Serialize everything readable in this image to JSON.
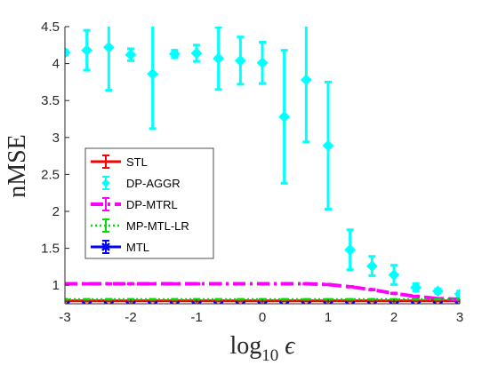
{
  "chart_data": {
    "type": "line",
    "title": "",
    "xlabel": "log",
    "xlabel_sub": "10",
    "xlabel_symbol": "ϵ",
    "ylabel": "nMSE",
    "xlim": [
      -3,
      3
    ],
    "ylim": [
      0.75,
      4.5
    ],
    "xticks": [
      -3,
      -2,
      -1,
      0,
      1,
      2,
      3
    ],
    "xtick_labels": [
      "-3",
      "-2",
      "-1",
      "0",
      "1",
      "2",
      "3"
    ],
    "yticks": [
      1,
      1.5,
      2,
      2.5,
      3,
      3.5,
      4,
      4.5
    ],
    "ytick_labels": [
      "1",
      "1.5",
      "2",
      "2.5",
      "3",
      "3.5",
      "4",
      "4.5"
    ],
    "grid": false,
    "legend_position": "left-middle",
    "x": [
      -3,
      -2.667,
      -2.333,
      -2,
      -1.667,
      -1.333,
      -1,
      -0.667,
      -0.333,
      0,
      0.333,
      0.667,
      1,
      1.333,
      1.667,
      2,
      2.333,
      2.667,
      3
    ],
    "series": [
      {
        "name": "STL",
        "color": "#ff0000",
        "line_style": "solid",
        "marker": "none",
        "values": [
          0.79,
          0.79,
          0.79,
          0.79,
          0.79,
          0.79,
          0.79,
          0.79,
          0.79,
          0.79,
          0.79,
          0.79,
          0.79,
          0.79,
          0.79,
          0.79,
          0.79,
          0.79,
          0.79
        ],
        "err": [
          0.01,
          0.01,
          0.01,
          0.01,
          0.01,
          0.01,
          0.01,
          0.01,
          0.01,
          0.01,
          0.01,
          0.01,
          0.01,
          0.01,
          0.01,
          0.01,
          0.01,
          0.01,
          0.01
        ]
      },
      {
        "name": "DP-AGGR",
        "color": "#00ffff",
        "line_style": "none",
        "marker": "diamond",
        "values": [
          4.15,
          4.18,
          4.22,
          4.12,
          3.86,
          4.13,
          4.14,
          4.07,
          4.04,
          4.01,
          3.28,
          3.78,
          2.89,
          1.48,
          1.26,
          1.14,
          0.97,
          0.92,
          0.88
        ],
        "err": [
          0.03,
          0.27,
          0.58,
          0.08,
          0.74,
          0.05,
          0.11,
          0.42,
          0.32,
          0.28,
          0.9,
          0.84,
          0.86,
          0.27,
          0.13,
          0.13,
          0.05,
          0.03,
          0.04
        ]
      },
      {
        "name": "DP-MTRL",
        "color": "#ff00ff",
        "line_style": "dashdot",
        "marker": "none",
        "values": [
          1.02,
          1.02,
          1.02,
          1.02,
          1.02,
          1.02,
          1.02,
          1.02,
          1.02,
          1.02,
          1.02,
          1.02,
          1.01,
          0.98,
          0.94,
          0.89,
          0.85,
          0.82,
          0.81
        ],
        "err": [
          0.01,
          0.01,
          0.01,
          0.01,
          0.01,
          0.01,
          0.01,
          0.01,
          0.01,
          0.01,
          0.01,
          0.01,
          0.01,
          0.01,
          0.01,
          0.01,
          0.01,
          0.01,
          0.01
        ]
      },
      {
        "name": "MP-MTL-LR",
        "color": "#00dd00",
        "line_style": "dotted",
        "marker": "none",
        "values": [
          0.81,
          0.81,
          0.81,
          0.81,
          0.81,
          0.81,
          0.81,
          0.81,
          0.81,
          0.81,
          0.81,
          0.81,
          0.81,
          0.81,
          0.81,
          0.81,
          0.81,
          0.81,
          0.81
        ],
        "err": [
          0.005,
          0.005,
          0.005,
          0.005,
          0.005,
          0.005,
          0.005,
          0.005,
          0.005,
          0.005,
          0.005,
          0.005,
          0.005,
          0.005,
          0.005,
          0.005,
          0.005,
          0.005,
          0.005
        ]
      },
      {
        "name": "MTL",
        "color": "#0000ff",
        "line_style": "solid",
        "marker": "x",
        "values": [
          0.72,
          0.72,
          0.72,
          0.72,
          0.72,
          0.72,
          0.72,
          0.72,
          0.72,
          0.72,
          0.72,
          0.72,
          0.72,
          0.72,
          0.72,
          0.72,
          0.72,
          0.72,
          0.72
        ],
        "err": [
          0.005,
          0.005,
          0.005,
          0.005,
          0.005,
          0.005,
          0.005,
          0.005,
          0.005,
          0.005,
          0.005,
          0.005,
          0.005,
          0.005,
          0.005,
          0.005,
          0.005,
          0.005,
          0.005
        ]
      }
    ]
  }
}
